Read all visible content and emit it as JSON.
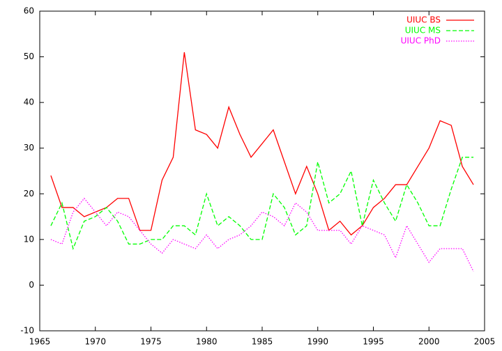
{
  "chart_data": {
    "type": "line",
    "x": [
      1966,
      1967,
      1968,
      1969,
      1970,
      1971,
      1972,
      1973,
      1974,
      1975,
      1976,
      1977,
      1978,
      1979,
      1980,
      1981,
      1982,
      1983,
      1984,
      1985,
      1986,
      1987,
      1988,
      1989,
      1990,
      1991,
      1992,
      1993,
      1994,
      1995,
      1996,
      1997,
      1998,
      1999,
      2000,
      2001,
      2002,
      2003,
      2004
    ],
    "series": [
      {
        "name": "UIUC BS",
        "color": "#ff0000",
        "dash": "solid",
        "values": [
          24,
          17,
          17,
          15,
          16,
          17,
          19,
          19,
          12,
          12,
          23,
          28,
          51,
          34,
          33,
          30,
          39,
          33,
          28,
          31,
          34,
          27,
          20,
          26,
          20,
          12,
          14,
          11,
          13,
          17,
          19,
          22,
          22,
          26,
          30,
          36,
          35,
          26,
          22
        ]
      },
      {
        "name": "UIUC MS",
        "color": "#00ff00",
        "dash": "dashed",
        "values": [
          13,
          18,
          8,
          14,
          15,
          17,
          14,
          9,
          9,
          10,
          10,
          13,
          13,
          11,
          20,
          13,
          15,
          13,
          10,
          10,
          20,
          17,
          11,
          13,
          27,
          18,
          20,
          25,
          13,
          23,
          18,
          14,
          22,
          18,
          13,
          13,
          21,
          28,
          28
        ]
      },
      {
        "name": "UIUC PhD",
        "color": "#ff00ff",
        "dash": "dotted",
        "values": [
          10,
          9,
          16,
          19,
          16,
          13,
          16,
          15,
          12,
          9,
          7,
          10,
          9,
          8,
          11,
          8,
          10,
          11,
          13,
          16,
          15,
          13,
          18,
          16,
          12,
          12,
          12,
          9,
          13,
          12,
          11,
          6,
          13,
          9,
          5,
          8,
          8,
          8,
          3
        ]
      }
    ],
    "xlim": [
      1965,
      2005
    ],
    "xticks": [
      1965,
      1970,
      1975,
      1980,
      1985,
      1990,
      1995,
      2000,
      2005
    ],
    "ylim": [
      -10,
      60
    ],
    "yticks": [
      -10,
      0,
      10,
      20,
      30,
      40,
      50,
      60
    ],
    "legend": "top-right"
  }
}
